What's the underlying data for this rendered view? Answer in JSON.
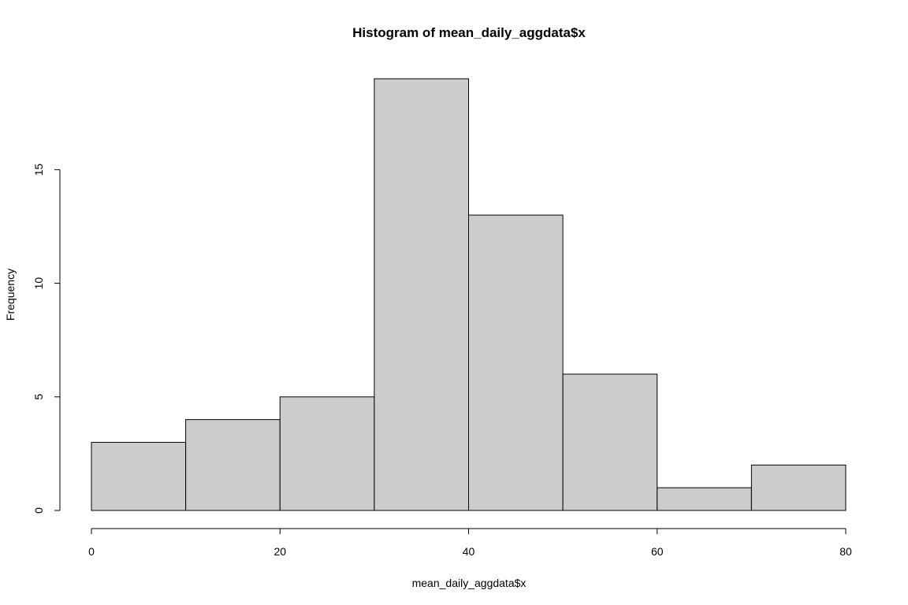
{
  "chart_data": {
    "type": "bar",
    "title": "Histogram of mean_daily_aggdata$x",
    "xlabel": "mean_daily_aggdata$x",
    "ylabel": "Frequency",
    "bins": [
      {
        "from": 0,
        "to": 10,
        "count": 3
      },
      {
        "from": 10,
        "to": 20,
        "count": 4
      },
      {
        "from": 20,
        "to": 30,
        "count": 5
      },
      {
        "from": 30,
        "to": 40,
        "count": 19
      },
      {
        "from": 40,
        "to": 50,
        "count": 13
      },
      {
        "from": 50,
        "to": 60,
        "count": 6
      },
      {
        "from": 60,
        "to": 70,
        "count": 1
      },
      {
        "from": 70,
        "to": 80,
        "count": 2
      }
    ],
    "xlim": [
      0,
      80
    ],
    "ylim": [
      0,
      19
    ],
    "xticks": [
      "0",
      "20",
      "40",
      "60",
      "80"
    ],
    "yticks": [
      "0",
      "5",
      "10",
      "15"
    ],
    "bar_color": "#cccccc",
    "border_color": "#000000",
    "grid": false
  }
}
